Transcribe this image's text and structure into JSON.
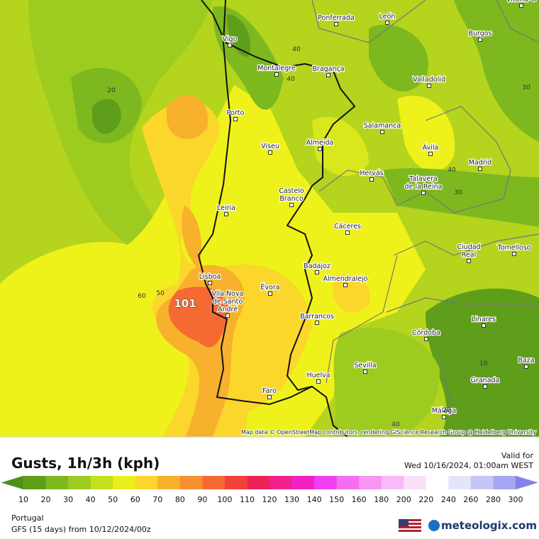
{
  "map": {
    "cities": [
      [
        "Vitoria-G"
      ],
      [
        "Ponferrada"
      ],
      [
        "León"
      ],
      [
        "Burgos"
      ],
      [
        "Vigo"
      ],
      [
        "Montalegre"
      ],
      [
        "Bragança"
      ],
      [
        "Valladolid"
      ],
      [
        "Porto"
      ],
      [
        "Salamanca"
      ],
      [
        "Viseu"
      ],
      [
        "Almeida"
      ],
      [
        "Ávila"
      ],
      [
        "Madrid"
      ],
      [
        "Hervás"
      ],
      [
        "Talavera",
        "de la Reina"
      ],
      [
        "Castelo",
        "Branco"
      ],
      [
        "Leiria"
      ],
      [
        "Cáceres"
      ],
      [
        "Ciudad",
        "Real"
      ],
      [
        "Tomelloso"
      ],
      [
        "Lisboa"
      ],
      [
        "Badajoz"
      ],
      [
        "Almendralejo"
      ],
      [
        "Évora"
      ],
      [
        "Vila Nova",
        "de Santo",
        "André"
      ],
      [
        "Barrancos"
      ],
      [
        "Linares"
      ],
      [
        "Córdoba"
      ],
      [
        "Sevilla"
      ],
      [
        "Baza"
      ],
      [
        "Huelva"
      ],
      [
        "Granada"
      ],
      [
        "Faro"
      ],
      [
        "Málaga"
      ]
    ],
    "contour_labels": [
      "40",
      "40",
      "20",
      "30",
      "40",
      "30",
      "60",
      "50",
      "10",
      "40",
      "20"
    ],
    "max_label": "101",
    "attribution": "Map data © OpenStreetMap contributors, rendering GIScience Research Group @ Heidelberg University"
  },
  "legend": {
    "title": "Gusts, 1h/3h (kph)",
    "valid_label": "Valid for",
    "valid_time": "Wed 10/16/2024, 01:00am WEST",
    "labels": [
      "10",
      "20",
      "30",
      "40",
      "50",
      "60",
      "70",
      "80",
      "90",
      "100",
      "110",
      "120",
      "130",
      "140",
      "150",
      "160",
      "180",
      "200",
      "220",
      "240",
      "260",
      "280",
      "300"
    ],
    "colors": [
      "#4a9212",
      "#5e9e1b",
      "#7db81f",
      "#9ecb1f",
      "#c4df1c",
      "#eaf01c",
      "#fbd62b",
      "#f8b12c",
      "#f69030",
      "#f56a32",
      "#f2413a",
      "#ef2258",
      "#f0208c",
      "#f022c0",
      "#f03ef0",
      "#f46ef2",
      "#f794f4",
      "#f9baf8",
      "#fbe0fa",
      "#ffffff",
      "#e4e4fa",
      "#c6c6f6",
      "#a6a6f2",
      "#8282ee"
    ]
  },
  "footer": {
    "region": "Portugal",
    "model": "GFS (15 days) from 10/12/2024/00z",
    "brand": "meteologix.com"
  }
}
